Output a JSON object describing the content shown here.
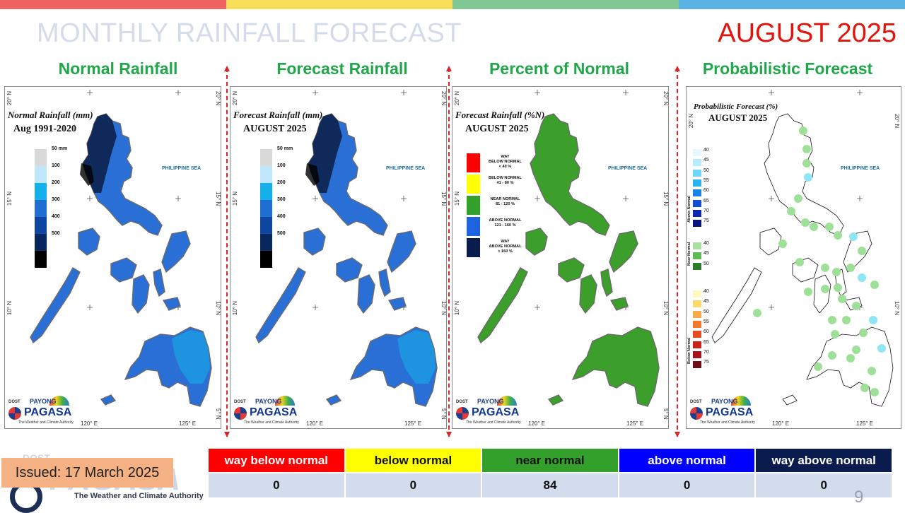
{
  "header": {
    "title": "MONTHLY RAINFALL FORECAST",
    "month": "AUGUST 2025"
  },
  "top_bar_colors": [
    "#ef6363",
    "#f7df5a",
    "#7fc794",
    "#5ab3e3"
  ],
  "panels": [
    {
      "title": "Normal Rainfall",
      "label_line1": "Normal Rainfall (mm)",
      "label_line2": "Aug 1991-2020",
      "fill": "#2a6fd6"
    },
    {
      "title": "Forecast Rainfall",
      "label_line1": "Forecast Rainfall (mm)",
      "label_line2": "AUGUST 2025",
      "fill": "#2a6fd6"
    },
    {
      "title": "Percent of Normal",
      "label_line1": "Forecast Rainfall (%N)",
      "label_line2": "AUGUST 2025",
      "fill": "#3c9e2b"
    },
    {
      "title": "Probabilistic Forecast",
      "label_line1": "Probabilistic Forecast (%)",
      "label_line2": "AUGUST 2025",
      "fill": "#ffffff"
    }
  ],
  "map_labels": {
    "sea": "PHILIPPINE SEA",
    "lat": [
      "20° N",
      "15° N",
      "10° N",
      "5° N"
    ],
    "lon": [
      "120° E",
      "125° E"
    ]
  },
  "rain_legend": [
    {
      "label": "50 mm",
      "color": "#d9d9d9"
    },
    {
      "label": "100",
      "color": "#bfe6fb"
    },
    {
      "label": "200",
      "color": "#14b0ea"
    },
    {
      "label": "300",
      "color": "#1f6fd3"
    },
    {
      "label": "400",
      "color": "#0d47a1"
    },
    {
      "label": "500",
      "color": "#08275f"
    },
    {
      "label": "",
      "color": "#000000"
    }
  ],
  "pct_legend": [
    {
      "l1": "WAY",
      "l2": "BELOW NORMAL",
      "l3": "< 40 %",
      "color": "#ff0000"
    },
    {
      "l1": "",
      "l2": "BELOW NORMAL",
      "l3": "41 - 80 %",
      "color": "#ffff00"
    },
    {
      "l1": "",
      "l2": "NEAR NORMAL",
      "l3": "81 - 120 %",
      "color": "#33a02c"
    },
    {
      "l1": "",
      "l2": "ABOVE NORMAL",
      "l3": "121 - 160 %",
      "color": "#1f63e0"
    },
    {
      "l1": "WAY",
      "l2": "ABOVE NORMAL",
      "l3": "> 160 %",
      "color": "#0a1b4d"
    }
  ],
  "prob_legend": {
    "above": {
      "name": "Above Normal",
      "levels": [
        "40",
        "45",
        "50",
        "55",
        "60",
        "65",
        "70",
        "75"
      ],
      "colors": [
        "#e8f7fe",
        "#b7ecfb",
        "#6fd6f7",
        "#2ab3ee",
        "#1a83e6",
        "#1350d4",
        "#0b26b0",
        "#07147d"
      ]
    },
    "near": {
      "name": "Near Normal",
      "levels": [
        "40",
        "45",
        "50"
      ],
      "colors": [
        "#a8dfa0",
        "#5dbb55",
        "#2a7d2a"
      ]
    },
    "below": {
      "name": "Below Normal",
      "levels": [
        "40",
        "45",
        "50",
        "55",
        "60",
        "65",
        "70",
        "75"
      ],
      "colors": [
        "#fff7c0",
        "#fdd86a",
        "#f8a94a",
        "#f2782e",
        "#e64b22",
        "#d02119",
        "#a8121a",
        "#6f0c14"
      ]
    }
  },
  "logo": {
    "dost": "DOST",
    "payong": "PAYONG",
    "pagasa": "PAGASA",
    "tagline": "The Weather and Climate Authority"
  },
  "issued": "Issued: 17 March 2025",
  "summary": {
    "categories": [
      "way below normal",
      "below normal",
      "near normal",
      "above normal",
      "way above normal"
    ],
    "colors": [
      "#ff0000",
      "#ffff00",
      "#33a02c",
      "#0000ff",
      "#0a1b4d"
    ],
    "text_colors": [
      "#ffffff",
      "#111111",
      "#111111",
      "#ffffff",
      "#ffffff"
    ],
    "values": [
      "0",
      "0",
      "84",
      "0",
      "0"
    ]
  },
  "page_number": "9"
}
